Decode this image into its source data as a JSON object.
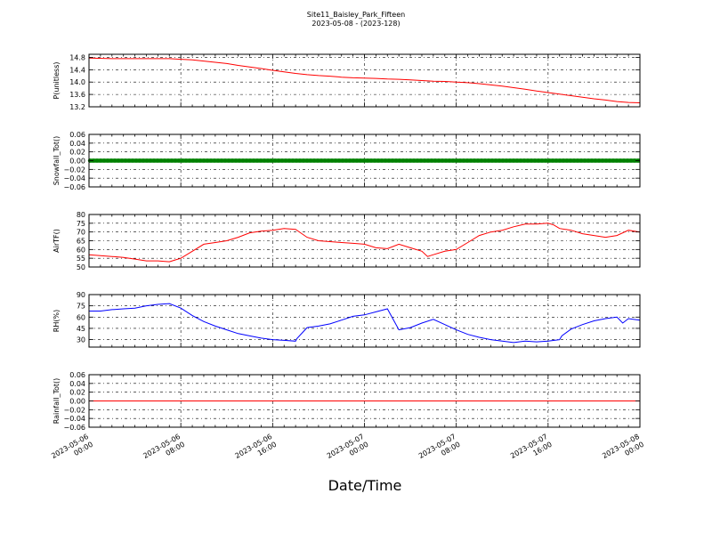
{
  "title": "Site11_Baisley_Park_Fifteen",
  "subtitle": "2023-05-08 - (2023-128)",
  "xlabel": "Date/Time",
  "x_ticks": [
    [
      "2023-05-06",
      "00:00"
    ],
    [
      "2023-05-06",
      "08:00"
    ],
    [
      "2023-05-06",
      "16:00"
    ],
    [
      "2023-05-07",
      "00:00"
    ],
    [
      "2023-05-07",
      "08:00"
    ],
    [
      "2023-05-07",
      "16:00"
    ],
    [
      "2023-05-08",
      "00:00"
    ]
  ],
  "colors": {
    "red": "#ff0000",
    "green": "#008000",
    "blue": "#0000ff"
  },
  "chart_data": [
    {
      "type": "line",
      "ylabel": "P(unitless)",
      "ylim": [
        13.2,
        14.9
      ],
      "yticks": [
        "14.8",
        "14.4",
        "14.0",
        "13.6",
        "13.2"
      ],
      "ytick_values": [
        14.8,
        14.4,
        14.0,
        13.6,
        13.2
      ],
      "xlim_hours": [
        0,
        48
      ],
      "grid": true,
      "series": [
        {
          "color": "#ff0000",
          "x_hours": [
            0,
            2,
            4,
            6,
            7,
            8,
            9,
            10,
            11,
            12,
            13,
            14,
            15,
            16,
            17,
            18,
            19,
            20,
            21,
            22,
            23,
            24,
            25,
            26,
            27,
            28,
            29,
            30,
            31,
            32,
            33,
            34,
            35,
            36,
            37,
            38,
            39,
            40,
            41,
            42,
            43,
            44,
            45,
            46,
            47,
            48
          ],
          "values": [
            14.78,
            14.76,
            14.76,
            14.76,
            14.76,
            14.74,
            14.72,
            14.68,
            14.64,
            14.6,
            14.54,
            14.49,
            14.44,
            14.38,
            14.33,
            14.28,
            14.24,
            14.21,
            14.19,
            14.16,
            14.14,
            14.13,
            14.12,
            14.1,
            14.09,
            14.07,
            14.05,
            14.03,
            14.02,
            14.0,
            13.98,
            13.95,
            13.91,
            13.87,
            13.82,
            13.77,
            13.71,
            13.66,
            13.61,
            13.56,
            13.51,
            13.46,
            13.42,
            13.37,
            13.34,
            13.33
          ]
        }
      ]
    },
    {
      "type": "line",
      "ylabel": "Snowfall_Tot()",
      "ylim": [
        -0.06,
        0.06
      ],
      "yticks": [
        "0.06",
        "0.04",
        "0.02",
        "0.00",
        "−0.02",
        "−0.04",
        "−0.06"
      ],
      "ytick_values": [
        0.06,
        0.04,
        0.02,
        0.0,
        -0.02,
        -0.04,
        -0.06
      ],
      "xlim_hours": [
        0,
        48
      ],
      "grid": true,
      "series": [
        {
          "color": "#008000",
          "marker": "dot",
          "x_hours": [
            0,
            48
          ],
          "values": [
            0.0,
            0.0
          ]
        }
      ]
    },
    {
      "type": "line",
      "ylabel": "AirTF()",
      "ylim": [
        50,
        80
      ],
      "yticks": [
        "80",
        "75",
        "70",
        "65",
        "60",
        "55",
        "50"
      ],
      "ytick_values": [
        80,
        75,
        70,
        65,
        60,
        55,
        50
      ],
      "xlim_hours": [
        0,
        48
      ],
      "grid": true,
      "series": [
        {
          "color": "#ff0000",
          "x_hours": [
            0,
            1,
            2,
            3,
            4,
            5,
            6,
            7,
            7.5,
            8,
            9,
            10,
            11,
            12,
            13,
            14,
            15,
            16,
            17,
            18,
            19,
            20,
            21,
            22,
            23,
            24,
            25,
            26,
            27,
            28,
            29,
            29.5,
            30,
            31,
            32,
            33,
            34,
            35,
            36,
            37,
            38,
            39,
            40,
            40.5,
            41,
            42,
            43,
            44,
            45,
            46,
            47,
            48
          ],
          "values": [
            57,
            56.5,
            56,
            55.5,
            54.5,
            53.5,
            53.5,
            53,
            54,
            55,
            59,
            63,
            64,
            65,
            67,
            69.5,
            70.5,
            71,
            72,
            71.5,
            67,
            65,
            64.5,
            64,
            63.5,
            63,
            61,
            60.5,
            63,
            61,
            59,
            56,
            57,
            59,
            60,
            64,
            68,
            70,
            71,
            73,
            74.5,
            74.5,
            75,
            74,
            72,
            71,
            69,
            68,
            67,
            68,
            71,
            70
          ]
        }
      ]
    },
    {
      "type": "line",
      "ylabel": "RH(%)",
      "ylim": [
        20,
        90
      ],
      "yticks": [
        "90",
        "75",
        "60",
        "45",
        "30"
      ],
      "ytick_values": [
        90,
        75,
        60,
        45,
        30
      ],
      "xlim_hours": [
        0,
        48
      ],
      "grid": true,
      "series": [
        {
          "color": "#0000ff",
          "x_hours": [
            0,
            1,
            2,
            3,
            4,
            5,
            6,
            7,
            8,
            9,
            10,
            11,
            12,
            13,
            14,
            15,
            16,
            17,
            18,
            18.1,
            19,
            20,
            21,
            22,
            23,
            24,
            25,
            26,
            27,
            28,
            29,
            30,
            31,
            32,
            33,
            34,
            35,
            36,
            37,
            38,
            39,
            40,
            41,
            41.2,
            42,
            43,
            44,
            45,
            46,
            46.5,
            47,
            48
          ],
          "values": [
            68,
            68,
            70,
            71,
            72,
            75,
            77,
            78,
            72,
            62,
            54,
            48,
            43,
            38,
            35,
            32,
            30,
            29,
            28,
            31,
            46,
            48,
            51,
            56,
            61,
            63,
            67,
            71,
            43,
            46,
            52,
            57,
            50,
            43,
            37,
            33,
            30,
            28,
            26,
            28,
            27,
            28,
            30,
            35,
            44,
            50,
            55,
            58,
            60,
            52,
            58,
            56
          ]
        }
      ]
    },
    {
      "type": "line",
      "ylabel": "Rainfall_Tot()",
      "ylim": [
        -0.06,
        0.06
      ],
      "yticks": [
        "0.06",
        "0.04",
        "0.02",
        "0.00",
        "−0.02",
        "−0.04",
        "−0.06"
      ],
      "ytick_values": [
        0.06,
        0.04,
        0.02,
        0.0,
        -0.02,
        -0.04,
        -0.06
      ],
      "xlim_hours": [
        0,
        48
      ],
      "grid": true,
      "series": [
        {
          "color": "#ff0000",
          "x_hours": [
            0,
            48
          ],
          "values": [
            0.0,
            0.0
          ]
        }
      ]
    }
  ]
}
